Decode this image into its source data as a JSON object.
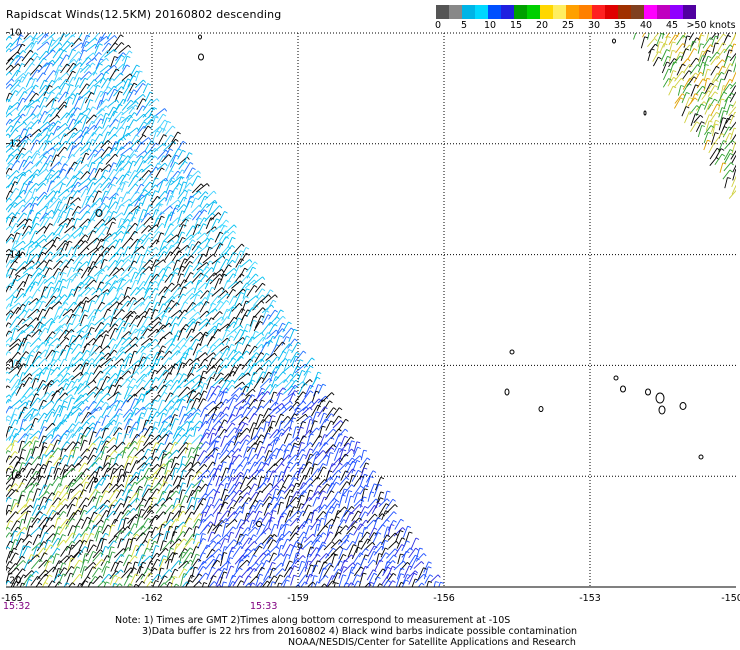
{
  "title": "Rapidscat Winds(12.5KM) 20160802 descending",
  "colorbar": {
    "colors": [
      "#555555",
      "#888888",
      "#00b4e6",
      "#00d8ff",
      "#0050ff",
      "#2020e0",
      "#00a000",
      "#00d000",
      "#ffd700",
      "#ffee60",
      "#ffa000",
      "#ff8000",
      "#ff2020",
      "#e00000",
      "#a03000",
      "#804020",
      "#ff00ff",
      "#c000c0",
      "#9000ff",
      "#5000a0"
    ],
    "labels": [
      "0",
      "5",
      "10",
      "15",
      "20",
      "25",
      "30",
      "35",
      "40",
      "45",
      ">50 knots"
    ]
  },
  "map": {
    "lon_range": [
      -165,
      -150
    ],
    "lat_range": [
      -20,
      -10
    ],
    "x_tick_labels": [
      "-165",
      "-162",
      "-159",
      "-156",
      "-153",
      "-150"
    ],
    "y_tick_labels": [
      "-10",
      "-12",
      "-14",
      "-16",
      "-18",
      "-20"
    ],
    "times": [
      "15:32",
      "15:33"
    ]
  },
  "notes": {
    "line1": "Note: 1) Times are GMT 2)Times along bottom correspond to measurement at -10S",
    "line2": "3)Data buffer is 22 hrs from 20160802 4) Black wind barbs indicate possible contamination",
    "line3": "NOAA/NESDIS/Center for Satellite Applications and Research"
  }
}
